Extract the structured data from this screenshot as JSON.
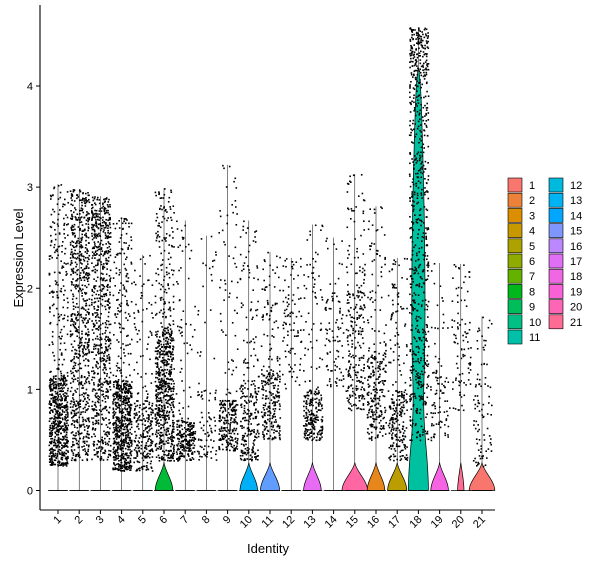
{
  "chart_data": {
    "type": "violin",
    "xlabel": "Identity",
    "ylabel": "Expression Level",
    "ylim": [
      -0.2,
      4.75
    ],
    "yticks": [
      0,
      1,
      2,
      3,
      4
    ],
    "categories": [
      "1",
      "2",
      "3",
      "4",
      "5",
      "6",
      "7",
      "8",
      "9",
      "10",
      "11",
      "12",
      "13",
      "14",
      "15",
      "16",
      "17",
      "18",
      "19",
      "20",
      "21"
    ],
    "colors": [
      "#F8766D",
      "#E58700",
      "#C99800",
      "#A3A500",
      "#6BB100",
      "#00BA38",
      "#00BF7D",
      "#00C0AF",
      "#00BCD8",
      "#00B0F6",
      "#619CFF",
      "#B983FF",
      "#E76BF3",
      "#FD61D1",
      "#FF67A4",
      "#E7861B",
      "#BB9D00",
      "#00C19F",
      "#F564E3",
      "#FF6C91",
      "#F8766D"
    ],
    "legend_colors": [
      "#F8766D",
      "#EC8239",
      "#DB8E00",
      "#C79800",
      "#AEA200",
      "#8FAA00",
      "#64B200",
      "#00B81B",
      "#00BD5C",
      "#00C085",
      "#00C1A7",
      "#00BADE",
      "#00B3F2",
      "#00A6FF",
      "#7F96FF",
      "#BC88FF",
      "#E06FF6",
      "#F067E4",
      "#FB61D7",
      "#FD65B5",
      "#FF6B94"
    ],
    "series": [
      {
        "cluster": "1",
        "max": 3.03,
        "band_lo": 0.25,
        "band_hi": 1.15,
        "density": "high",
        "violin_width": 0
      },
      {
        "cluster": "2",
        "max": 2.98,
        "band_lo": 0.3,
        "band_hi": 2.4,
        "density": "high",
        "violin_width": 0
      },
      {
        "cluster": "3",
        "max": 2.91,
        "band_lo": 0.3,
        "band_hi": 2.5,
        "density": "high",
        "violin_width": 0
      },
      {
        "cluster": "4",
        "max": 2.7,
        "band_lo": 0.2,
        "band_hi": 1.1,
        "density": "high",
        "violin_width": 0
      },
      {
        "cluster": "5",
        "max": 2.33,
        "band_lo": 0.2,
        "band_hi": 0.9,
        "density": "medium",
        "violin_width": 0
      },
      {
        "cluster": "6",
        "max": 2.99,
        "band_lo": 0.3,
        "band_hi": 1.6,
        "density": "high",
        "violin_width": 0.55
      },
      {
        "cluster": "7",
        "max": 2.67,
        "band_lo": 0.3,
        "band_hi": 0.7,
        "density": "medium",
        "violin_width": 0
      },
      {
        "cluster": "8",
        "max": 2.52,
        "band_lo": 0.3,
        "band_hi": 1.0,
        "density": "low",
        "violin_width": 0
      },
      {
        "cluster": "9",
        "max": 3.22,
        "band_lo": 0.4,
        "band_hi": 0.9,
        "density": "medium",
        "violin_width": 0
      },
      {
        "cluster": "10",
        "max": 2.67,
        "band_lo": 0.3,
        "band_hi": 1.1,
        "density": "medium",
        "violin_width": 0.55
      },
      {
        "cluster": "11",
        "max": 2.36,
        "band_lo": 0.5,
        "band_hi": 1.2,
        "density": "medium",
        "violin_width": 0.6
      },
      {
        "cluster": "12",
        "max": 2.3,
        "band_lo": 1.0,
        "band_hi": 2.0,
        "density": "low",
        "violin_width": 0
      },
      {
        "cluster": "13",
        "max": 2.63,
        "band_lo": 0.5,
        "band_hi": 1.0,
        "density": "medium",
        "violin_width": 0.55
      },
      {
        "cluster": "14",
        "max": 2.5,
        "band_lo": 1.0,
        "band_hi": 1.9,
        "density": "low",
        "violin_width": 0
      },
      {
        "cluster": "15",
        "max": 3.13,
        "band_lo": 0.8,
        "band_hi": 2.0,
        "density": "medium",
        "violin_width": 0.8
      },
      {
        "cluster": "16",
        "max": 2.81,
        "band_lo": 0.5,
        "band_hi": 1.4,
        "density": "medium",
        "violin_width": 0.55
      },
      {
        "cluster": "17",
        "max": 2.3,
        "band_lo": 0.3,
        "band_hi": 1.0,
        "density": "medium",
        "violin_width": 0.6
      },
      {
        "cluster": "18",
        "max": 4.58,
        "band_lo": 0.5,
        "band_hi": 4.1,
        "density": "high",
        "violin_width": 0.9
      },
      {
        "cluster": "19",
        "max": 2.25,
        "band_lo": 0.5,
        "band_hi": 1.2,
        "density": "low",
        "violin_width": 0.55
      },
      {
        "cluster": "20",
        "max": 2.24,
        "band_lo": 0.8,
        "band_hi": 1.7,
        "density": "low",
        "violin_width": 0.2
      },
      {
        "cluster": "21",
        "max": 1.72,
        "band_lo": 0.2,
        "band_hi": 1.1,
        "density": "low",
        "violin_width": 0.8
      }
    ]
  }
}
